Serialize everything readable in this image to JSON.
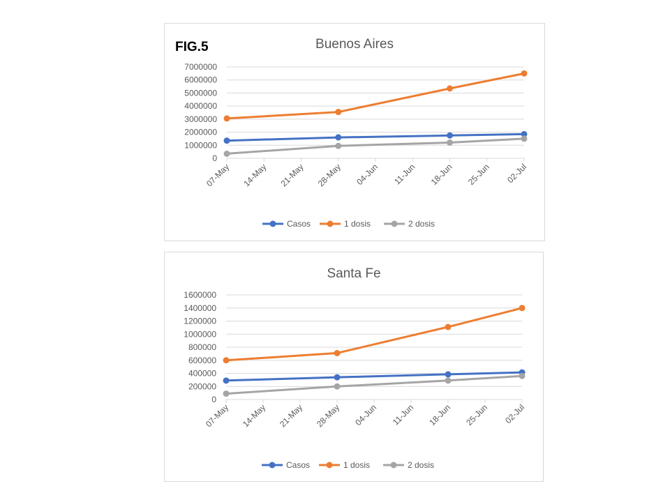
{
  "figure_label": "FIG.5",
  "chart_data": [
    {
      "type": "line",
      "title": "Buenos Aires",
      "xlabel": "",
      "ylabel": "",
      "x_ticks": [
        "07-May",
        "14-May",
        "21-May",
        "28-May",
        "04-Jun",
        "11-Jun",
        "18-Jun",
        "25-Jun",
        "02-Jul"
      ],
      "x_range": [
        "07-May",
        "02-Jul"
      ],
      "ylim": [
        0,
        7000000
      ],
      "y_ticks": [
        "0",
        "1000000",
        "2000000",
        "3000000",
        "4000000",
        "5000000",
        "6000000",
        "7000000"
      ],
      "grid": true,
      "legend": "bottom",
      "series": [
        {
          "name": "Casos",
          "color": "#4472c4",
          "x": [
            "07-May",
            "28-May",
            "18-Jun",
            "02-Jul"
          ],
          "values": [
            1350000,
            1600000,
            1750000,
            1850000
          ]
        },
        {
          "name": "1 dosis",
          "color": "#ed7d31",
          "x": [
            "07-May",
            "28-May",
            "18-Jun",
            "02-Jul"
          ],
          "values": [
            3050000,
            3550000,
            5350000,
            6500000
          ]
        },
        {
          "name": "2 dosis",
          "color": "#a5a5a5",
          "x": [
            "07-May",
            "28-May",
            "18-Jun",
            "02-Jul"
          ],
          "values": [
            350000,
            950000,
            1200000,
            1500000
          ]
        }
      ]
    },
    {
      "type": "line",
      "title": "Santa Fe",
      "xlabel": "",
      "ylabel": "",
      "x_ticks": [
        "07-May",
        "14-May",
        "21-May",
        "28-May",
        "04-Jun",
        "11-Jun",
        "18-Jun",
        "25-Jun",
        "02-Jul"
      ],
      "x_range": [
        "07-May",
        "02-Jul"
      ],
      "ylim": [
        0,
        1600000
      ],
      "y_ticks": [
        "0",
        "200000",
        "400000",
        "600000",
        "800000",
        "1000000",
        "1200000",
        "1400000",
        "1600000"
      ],
      "grid": true,
      "legend": "bottom",
      "series": [
        {
          "name": "Casos",
          "color": "#4472c4",
          "x": [
            "07-May",
            "28-May",
            "18-Jun",
            "02-Jul"
          ],
          "values": [
            290000,
            340000,
            385000,
            415000
          ]
        },
        {
          "name": "1 dosis",
          "color": "#ed7d31",
          "x": [
            "07-May",
            "28-May",
            "18-Jun",
            "02-Jul"
          ],
          "values": [
            600000,
            710000,
            1110000,
            1400000
          ]
        },
        {
          "name": "2 dosis",
          "color": "#a5a5a5",
          "x": [
            "07-May",
            "28-May",
            "18-Jun",
            "02-Jul"
          ],
          "values": [
            90000,
            200000,
            290000,
            360000
          ]
        }
      ]
    }
  ]
}
